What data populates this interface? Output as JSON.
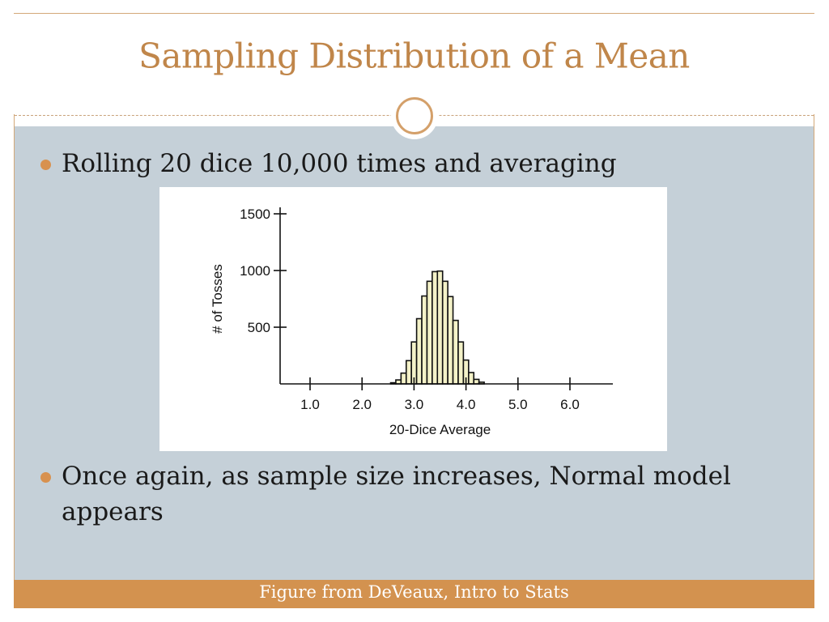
{
  "slide": {
    "title": "Sampling Distribution of a Mean",
    "bullets": [
      "Rolling 20 dice 10,000 times and averaging",
      "Once again, as sample size increases, Normal model appears"
    ],
    "footer": "Figure from DeVeaux, Intro to Stats",
    "colors": {
      "title": "#c0864a",
      "accent": "#d3924f",
      "content_bg": "#c5d0d8",
      "bar_fill": "#f4f2c8"
    }
  },
  "chart_data": {
    "type": "bar",
    "title": "",
    "xlabel": "20-Dice Average",
    "ylabel": "# of Tosses",
    "xlim": [
      0.5,
      7
    ],
    "ylim": [
      0,
      1500
    ],
    "x_ticks": [
      {
        "value": 1.0,
        "label": "1.0"
      },
      {
        "value": 2.0,
        "label": "2.0"
      },
      {
        "value": 3.0,
        "label": "3.0"
      },
      {
        "value": 4.0,
        "label": "4.0"
      },
      {
        "value": 5.0,
        "label": "5.0"
      },
      {
        "value": 6.0,
        "label": "6.0"
      }
    ],
    "y_ticks": [
      {
        "value": 500,
        "label": "500"
      },
      {
        "value": 1000,
        "label": "1000"
      },
      {
        "value": 1500,
        "label": "1500"
      }
    ],
    "bin_width": 0.1,
    "bins": [
      {
        "x": 2.6,
        "count": 10
      },
      {
        "x": 2.7,
        "count": 35
      },
      {
        "x": 2.8,
        "count": 95
      },
      {
        "x": 2.9,
        "count": 205
      },
      {
        "x": 3.0,
        "count": 370
      },
      {
        "x": 3.1,
        "count": 575
      },
      {
        "x": 3.2,
        "count": 775
      },
      {
        "x": 3.3,
        "count": 905
      },
      {
        "x": 3.4,
        "count": 990
      },
      {
        "x": 3.5,
        "count": 995
      },
      {
        "x": 3.6,
        "count": 905
      },
      {
        "x": 3.7,
        "count": 770
      },
      {
        "x": 3.8,
        "count": 560
      },
      {
        "x": 3.9,
        "count": 370
      },
      {
        "x": 4.0,
        "count": 210
      },
      {
        "x": 4.1,
        "count": 100
      },
      {
        "x": 4.2,
        "count": 40
      },
      {
        "x": 4.3,
        "count": 15
      }
    ]
  }
}
